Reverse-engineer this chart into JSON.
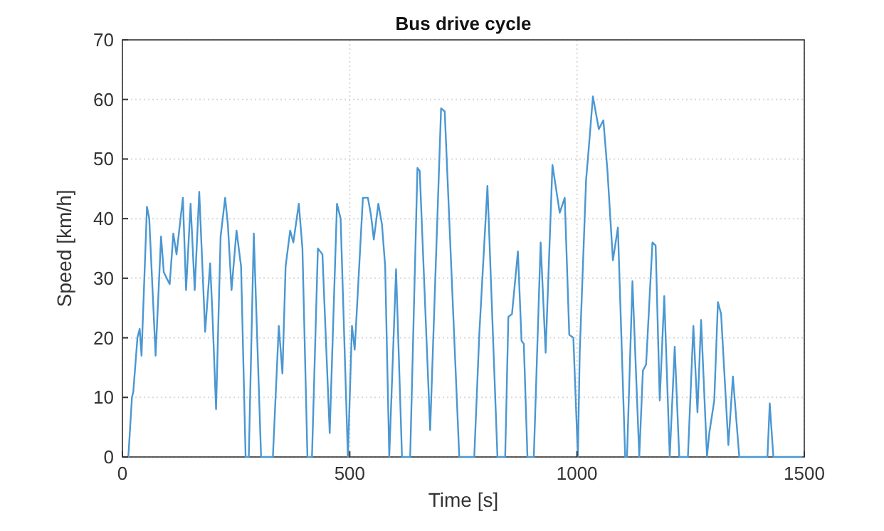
{
  "chart_data": {
    "type": "line",
    "title": "Bus drive cycle",
    "xlabel": "Time [s]",
    "ylabel": "Speed [km/h]",
    "xlim": [
      0,
      1500
    ],
    "ylim": [
      0,
      70
    ],
    "xticks": [
      0,
      500,
      1000,
      1500
    ],
    "yticks": [
      0,
      10,
      20,
      30,
      40,
      50,
      60,
      70
    ],
    "grid": true,
    "marker": "none",
    "line_style": "solid",
    "series": [
      {
        "color": "#4a97d2",
        "x": [
          13,
          21,
          24,
          33,
          38,
          42,
          54,
          59,
          73,
          85,
          91,
          104,
          112,
          119,
          133,
          140,
          150,
          159,
          169,
          182,
          193,
          198,
          206,
          216,
          226,
          232,
          240,
          251,
          261,
          271,
          278,
          289,
          305,
          331,
          344,
          352,
          359,
          369,
          376,
          388,
          396,
          407,
          417,
          430,
          440,
          456,
          472,
          480,
          496,
          505,
          511,
          529,
          540,
          547,
          553,
          563,
          571,
          578,
          587,
          602,
          615,
          633,
          649,
          654,
          677,
          701,
          709,
          741,
          774,
          785,
          803,
          825,
          842,
          849,
          857,
          870,
          878,
          883,
          891,
          905,
          920,
          931,
          946,
          962,
          973,
          983,
          992,
          1002,
          1006,
          1020,
          1025,
          1035,
          1048,
          1058,
          1067,
          1079,
          1090,
          1106,
          1110,
          1122,
          1137,
          1145,
          1152,
          1166,
          1173,
          1182,
          1192,
          1204,
          1215,
          1225,
          1244,
          1256,
          1265,
          1273,
          1286,
          1291,
          1302,
          1310,
          1317,
          1333,
          1343,
          1357,
          1419,
          1424,
          1432,
          1494
        ],
        "values": [
          0,
          10,
          11,
          20,
          21.5,
          17,
          42,
          40,
          17,
          37,
          31,
          29,
          37.5,
          34,
          43.5,
          28,
          42.5,
          28,
          44.5,
          21,
          32.5,
          24,
          8,
          37,
          43.5,
          39,
          28,
          38,
          32,
          0,
          0,
          37.5,
          0,
          0,
          22,
          14,
          32,
          38,
          36,
          42.5,
          35,
          0,
          0,
          35,
          34,
          4,
          42.5,
          40,
          0,
          22,
          18,
          43.5,
          43.5,
          40.5,
          36.5,
          42.5,
          39,
          32,
          0,
          31.5,
          0,
          0,
          48.5,
          48,
          4.5,
          58.5,
          58,
          0,
          0,
          20.5,
          45.5,
          0,
          0,
          23.5,
          24,
          34.5,
          19.5,
          19,
          0,
          0,
          36,
          17.5,
          49,
          41,
          43.5,
          20.5,
          20,
          0,
          17.5,
          46.5,
          51,
          60.5,
          55,
          56.5,
          48,
          33,
          38.5,
          0,
          0,
          29.5,
          0,
          14.5,
          15.5,
          36,
          35.5,
          9.5,
          27,
          0,
          18.5,
          0,
          0,
          22,
          7.5,
          23,
          0,
          4,
          9.5,
          26,
          24,
          2,
          13.5,
          0,
          0,
          9,
          0,
          0
        ]
      }
    ]
  }
}
